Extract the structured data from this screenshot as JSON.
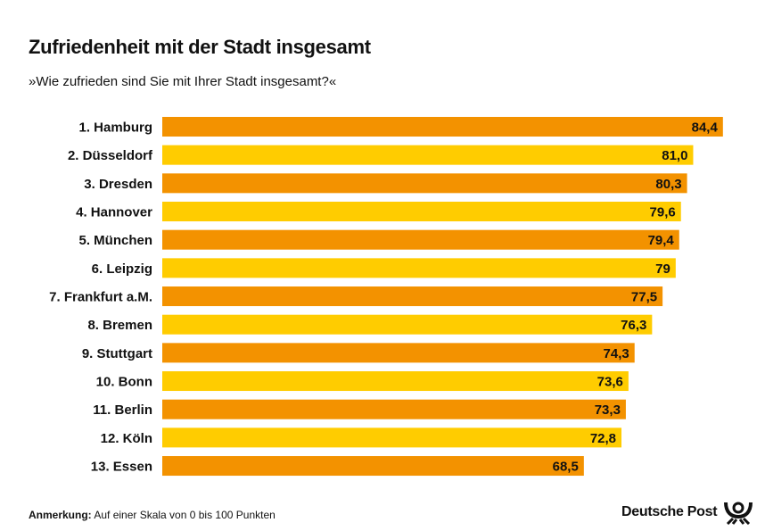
{
  "chart_data": {
    "type": "bar",
    "orientation": "horizontal",
    "title": "Zufriedenheit mit der Stadt insgesamt",
    "subtitle": "»Wie zufrieden sind Sie mit Ihrer Stadt insgesamt?«",
    "categories": [
      "1. Hamburg",
      "2. Düsseldorf",
      "3. Dresden",
      "4. Hannover",
      "5. München",
      "6. Leipzig",
      "7. Frankfurt a.M.",
      "8. Bremen",
      "9. Stuttgart",
      "10. Bonn",
      "11. Berlin",
      "12. Köln",
      "13. Essen"
    ],
    "values": [
      84.4,
      81.0,
      80.3,
      79.6,
      79.4,
      79,
      77.5,
      76.3,
      74.3,
      73.6,
      73.3,
      72.8,
      68.5
    ],
    "labels": [
      "84,4",
      "81,0",
      "80,3",
      "79,6",
      "79,4",
      "79",
      "77,5",
      "76,3",
      "74,3",
      "73,6",
      "73,3",
      "72,8",
      "68,5"
    ],
    "colors": [
      "#F39200",
      "#FFCC00"
    ],
    "grid": false,
    "legend": "none"
  },
  "footer": {
    "note_label": "Anmerkung:",
    "note_text": " Auf einer Skala von 0 bis 100 Punkten",
    "brand": "Deutsche Post",
    "logo_icon": "posthorn-icon"
  }
}
